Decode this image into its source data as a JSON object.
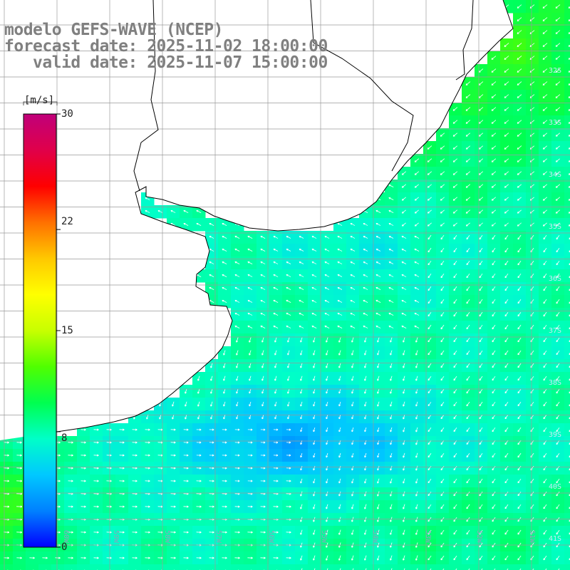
{
  "title": {
    "line1": "modelo GEFS-WAVE (NCEP)",
    "line2": "forecast date: 2025-11-02 18:00:00",
    "line3": "   valid date: 2025-11-07 15:00:00"
  },
  "colorbar": {
    "unit": "[m/s]",
    "ticks": [
      {
        "label": "30",
        "value": 30
      },
      {
        "label": "22",
        "value": 22
      },
      {
        "label": "15",
        "value": 15
      },
      {
        "label": "8",
        "value": 8
      },
      {
        "label": "0",
        "value": 0
      }
    ],
    "colors": [
      "#0000ff",
      "#0080ff",
      "#00c8ff",
      "#00ffc8",
      "#00ff50",
      "#50ff00",
      "#c8ff00",
      "#ffff00",
      "#ffc800",
      "#ff7000",
      "#ff0000",
      "#e0004a",
      "#c0007a"
    ]
  },
  "map": {
    "lat_labels": [
      {
        "label": "32S",
        "value": -32
      },
      {
        "label": "33S",
        "value": -33
      },
      {
        "label": "34S",
        "value": -34
      },
      {
        "label": "35S",
        "value": -35
      },
      {
        "label": "36S",
        "value": -36
      },
      {
        "label": "37S",
        "value": -37
      },
      {
        "label": "38S",
        "value": -38
      },
      {
        "label": "39S",
        "value": -39
      },
      {
        "label": "40S",
        "value": -40
      },
      {
        "label": "41S",
        "value": -41
      }
    ],
    "lon_labels": [
      {
        "label": "60W",
        "value": -60
      },
      {
        "label": "59W",
        "value": -59
      },
      {
        "label": "58W",
        "value": -58
      },
      {
        "label": "57W",
        "value": -57
      },
      {
        "label": "56W",
        "value": -56
      },
      {
        "label": "55W",
        "value": -55
      },
      {
        "label": "54W",
        "value": -54
      },
      {
        "label": "53W",
        "value": -53
      },
      {
        "label": "52W",
        "value": -52
      },
      {
        "label": "51W",
        "value": -51
      }
    ],
    "land_color": "#ffffff",
    "grid_color": "#9a9a9a",
    "coast_color": "#000000",
    "arrow_color": "#ffffff"
  }
}
